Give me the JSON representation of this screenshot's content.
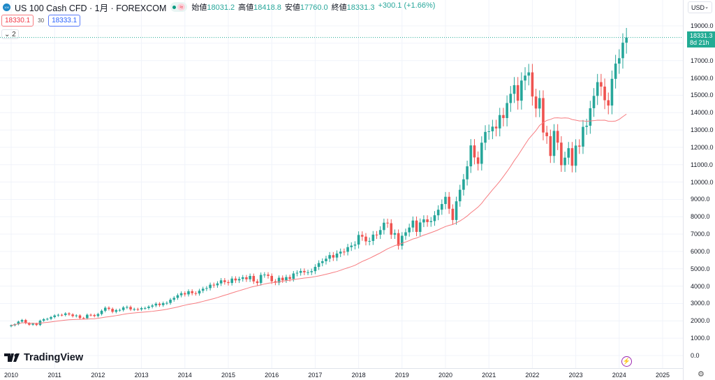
{
  "header": {
    "symbol": "US 100 Cash CFD",
    "interval": "1月",
    "exchange": "FOREXCOM",
    "logo_text": "100",
    "open_label": "始値",
    "open": "18031.2",
    "high_label": "高値",
    "high": "18418.8",
    "low_label": "安値",
    "low": "17760.0",
    "close_label": "終値",
    "close": "18331.3",
    "change": "+300.1 (+1.66%)"
  },
  "quote": {
    "bid": "18330.1",
    "spread": "30",
    "ask": "18333.1"
  },
  "collapse": {
    "label": "2"
  },
  "price_axis": {
    "currency": "USD",
    "last_price": "18331.3",
    "countdown": "8d 21h",
    "ticks": [
      "19000.0",
      "18000.0",
      "17000.0",
      "16000.0",
      "15000.0",
      "14000.0",
      "13000.0",
      "12000.0",
      "11000.0",
      "10000.0",
      "9000.0",
      "8000.0",
      "7000.0",
      "6000.0",
      "5000.0",
      "4000.0",
      "3000.0",
      "2000.0",
      "1000.0",
      "0.0"
    ]
  },
  "time_axis": {
    "ticks": [
      "2010",
      "2011",
      "2012",
      "2013",
      "2014",
      "2015",
      "2016",
      "2017",
      "2018",
      "2019",
      "2020",
      "2021",
      "2022",
      "2023",
      "2024",
      "2025"
    ]
  },
  "branding": {
    "name": "TradingView"
  },
  "colors": {
    "up": "#26a69a",
    "down": "#ef5350",
    "ma": "#f77c80"
  },
  "chart_data": {
    "type": "candlestick",
    "start": "2010-01",
    "interval": "1M",
    "ylim": [
      0,
      19000
    ],
    "ma_period": 24,
    "closes": [
      1741,
      1806,
      1956,
      2050,
      1871,
      1778,
      1840,
      1762,
      2010,
      2095,
      2117,
      2217,
      2311,
      2346,
      2338,
      2427,
      2369,
      2273,
      2312,
      2164,
      2154,
      2350,
      2337,
      2278,
      2392,
      2582,
      2755,
      2689,
      2522,
      2618,
      2629,
      2772,
      2799,
      2661,
      2677,
      2660,
      2732,
      2739,
      2819,
      2886,
      2987,
      2909,
      3020,
      3035,
      3218,
      3326,
      3476,
      3592,
      3527,
      3707,
      3596,
      3577,
      3737,
      3851,
      3888,
      4082,
      4049,
      4158,
      4335,
      4236,
      4181,
      4437,
      4333,
      4415,
      4509,
      4397,
      4588,
      4275,
      4182,
      4648,
      4665,
      4593,
      4280,
      4201,
      4484,
      4341,
      4523,
      4417,
      4731,
      4771,
      4875,
      4801,
      4803,
      4864,
      5111,
      5331,
      5436,
      5583,
      5789,
      5647,
      5880,
      5988,
      5979,
      6249,
      6337,
      6396,
      6950,
      6854,
      6581,
      6605,
      6968,
      6963,
      7233,
      7657,
      7628,
      6967,
      7055,
      6330,
      6905,
      7103,
      7378,
      7781,
      7127,
      7672,
      7848,
      7691,
      7750,
      8084,
      8406,
      8733,
      9150,
      8461,
      7813,
      8890,
      9555,
      10156,
      10905,
      12111,
      11418,
      11052,
      12268,
      12888,
      12925,
      13192,
      13091,
      13860,
      13687,
      14554,
      15083,
      15583,
      14689,
      15850,
      16135,
      16320,
      14930,
      14237,
      14838,
      12855,
      12643,
      11503,
      12947,
      12272,
      10971,
      11406,
      11951,
      10940,
      12101,
      12042,
      13181,
      13246,
      14254,
      14965,
      15758,
      15501,
      14715,
      14409,
      15947,
      16826,
      17137,
      18031,
      18331
    ]
  }
}
